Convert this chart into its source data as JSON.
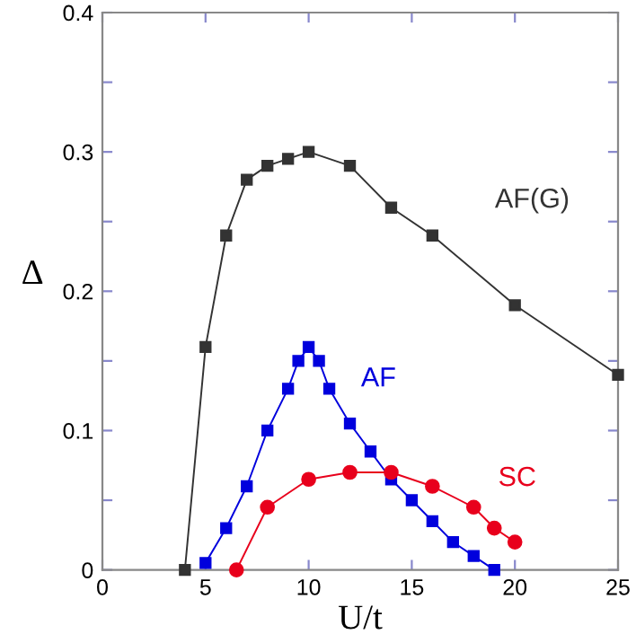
{
  "chart_data": {
    "type": "line",
    "xlabel": "U/t",
    "ylabel": "Δ",
    "series": [
      {
        "name": "AF(G)",
        "color": "#333333",
        "marker": "square",
        "x": [
          4,
          5,
          6,
          7,
          8,
          9,
          10,
          12,
          14,
          16,
          20,
          25
        ],
        "values": [
          0,
          0.16,
          0.24,
          0.28,
          0.29,
          0.295,
          0.3,
          0.29,
          0.26,
          0.24,
          0.19,
          0.14
        ]
      },
      {
        "name": "AF",
        "color": "#0000dd",
        "marker": "square",
        "x": [
          5,
          6,
          7,
          8,
          9,
          9.5,
          10,
          10.5,
          11,
          12,
          13,
          14,
          15,
          16,
          17,
          18,
          19
        ],
        "values": [
          0.005,
          0.03,
          0.06,
          0.1,
          0.13,
          0.15,
          0.16,
          0.15,
          0.13,
          0.105,
          0.085,
          0.065,
          0.05,
          0.035,
          0.02,
          0.01,
          0
        ]
      },
      {
        "name": "SC",
        "color": "#e8001c",
        "marker": "circle",
        "x": [
          6.5,
          8,
          10,
          12,
          14,
          16,
          18,
          19,
          20
        ],
        "values": [
          0,
          0.045,
          0.065,
          0.07,
          0.07,
          0.06,
          0.045,
          0.03,
          0.02
        ]
      }
    ],
    "xlim": [
      0,
      25
    ],
    "ylim": [
      0,
      0.4
    ],
    "xticks": [
      0,
      5,
      10,
      15,
      20,
      25
    ],
    "yticks": [
      0,
      {
        "value": 0.05,
        "label": null
      },
      0.1,
      {
        "value": 0.15,
        "label": null
      },
      0.2,
      {
        "value": 0.25,
        "label": null
      },
      0.3,
      {
        "value": 0.35,
        "label": null
      },
      0.4
    ],
    "grid": false,
    "legend": false
  }
}
